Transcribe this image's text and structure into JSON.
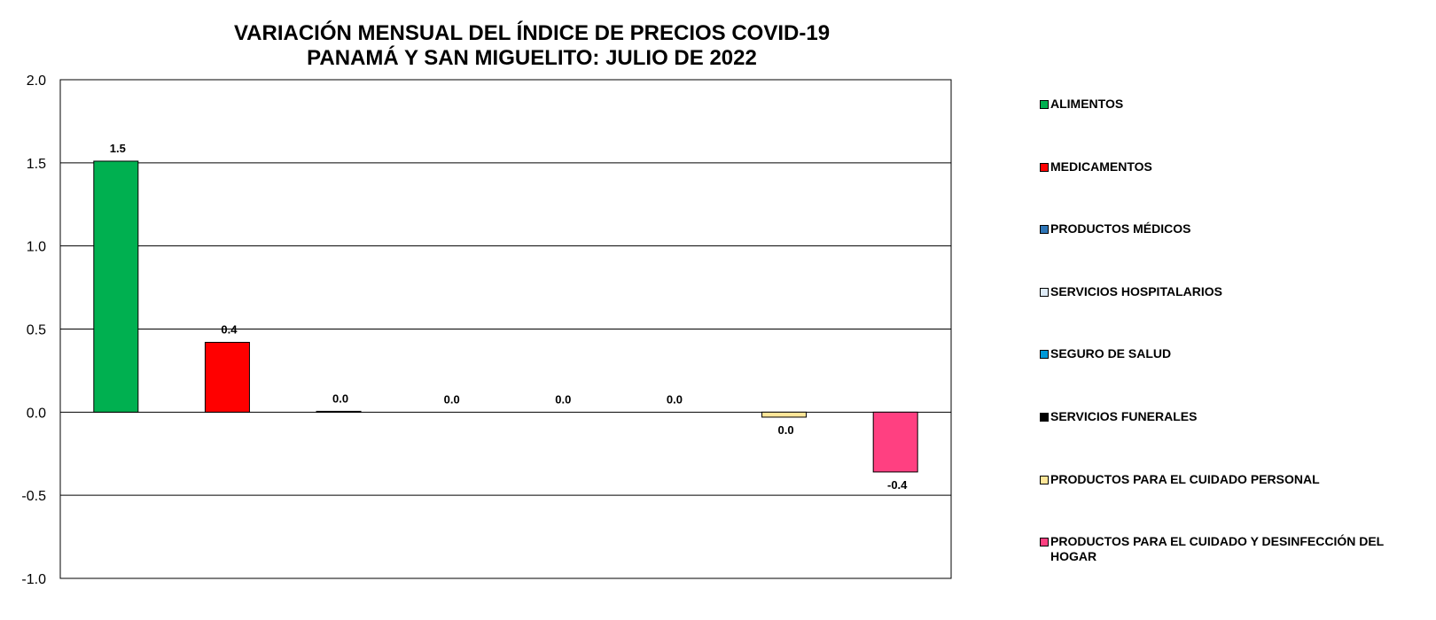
{
  "chart_data": {
    "type": "bar",
    "title": "VARIACIÓN MENSUAL DEL ÍNDICE DE PRECIOS COVID-19",
    "subtitle": "PANAMÁ Y SAN MIGUELITO: JULIO DE 2022",
    "ylim": [
      -1.0,
      2.0
    ],
    "yticks": [
      "2.0",
      "1.5",
      "1.0",
      "0.5",
      "0.0",
      "-0.5",
      "-1.0"
    ],
    "ytick_values": [
      2.0,
      1.5,
      1.0,
      0.5,
      0.0,
      -0.5,
      -1.0
    ],
    "grid": true,
    "legend_position": "right",
    "series": [
      {
        "name": "ALIMENTOS",
        "value": 1.51,
        "label": "1.5",
        "color": "#00B050"
      },
      {
        "name": "MEDICAMENTOS",
        "value": 0.42,
        "label": "0.4",
        "color": "#FF0000"
      },
      {
        "name": "PRODUCTOS MÉDICOS",
        "value": 0.005,
        "label": "0.0",
        "color": "#2E75B6"
      },
      {
        "name": "SERVICIOS HOSPITALARIOS",
        "value": 0.0,
        "label": "0.0",
        "color": "#DEEBF7"
      },
      {
        "name": "SEGURO DE SALUD",
        "value": 0.0,
        "label": "0.0",
        "color": "#0099D8"
      },
      {
        "name": "SERVICIOS FUNERALES",
        "value": 0.0,
        "label": "0.0",
        "color": "#000000"
      },
      {
        "name": "PRODUCTOS PARA EL CUIDADO PERSONAL",
        "value": -0.03,
        "label": "0.0",
        "color": "#FFE699"
      },
      {
        "name": "PRODUCTOS PARA EL CUIDADO Y DESINFECCIÓN DEL HOGAR",
        "value": -0.36,
        "label": "-0.4",
        "color": "#FF4081"
      }
    ]
  }
}
